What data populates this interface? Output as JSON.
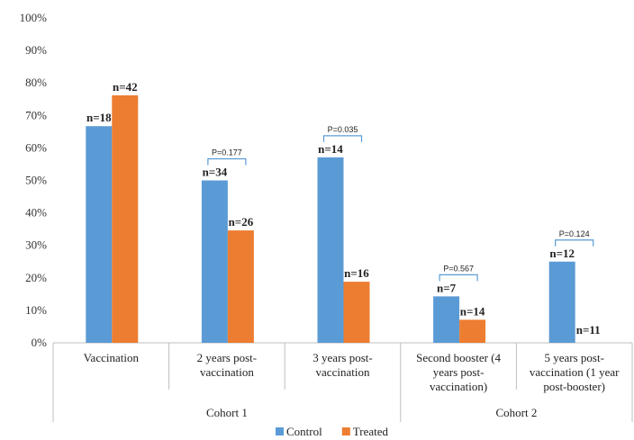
{
  "chart_data": {
    "type": "bar",
    "y_ticks": [
      "0%",
      "10%",
      "20%",
      "30%",
      "40%",
      "50%",
      "60%",
      "70%",
      "80%",
      "90%",
      "100%"
    ],
    "ylim": [
      0,
      100
    ],
    "grid": false,
    "legend_position": "bottom",
    "categories": [
      [
        "Vaccination"
      ],
      [
        "2 years post-",
        "vaccination"
      ],
      [
        "3 years post-",
        "vaccination"
      ],
      [
        "Second booster (4",
        "years post-",
        "vaccination)"
      ],
      [
        "5 years post-",
        "vaccination (1 year",
        "post-booster)"
      ]
    ],
    "groups": [
      {
        "label": "Cohort 1",
        "span": [
          0,
          2
        ]
      },
      {
        "label": "Cohort 2",
        "span": [
          3,
          4
        ]
      }
    ],
    "series": [
      {
        "name": "Control",
        "color": "#5B9BD5",
        "values": [
          66.7,
          50.0,
          57.1,
          14.3,
          25.0
        ],
        "labels": [
          "n=18",
          "n=34",
          "n=14",
          "n=7",
          "n=12"
        ]
      },
      {
        "name": "Treated",
        "color": "#ED7D31",
        "values": [
          76.2,
          34.6,
          18.8,
          7.1,
          0
        ],
        "labels": [
          "n=42",
          "n=26",
          "n=16",
          "n=14",
          "n=11"
        ]
      }
    ],
    "annotations": [
      {
        "category": 1,
        "text": "P=0.177"
      },
      {
        "category": 2,
        "text": "P=0.035"
      },
      {
        "category": 3,
        "text": "P=0.567"
      },
      {
        "category": 4,
        "text": "P=0.124"
      }
    ]
  }
}
